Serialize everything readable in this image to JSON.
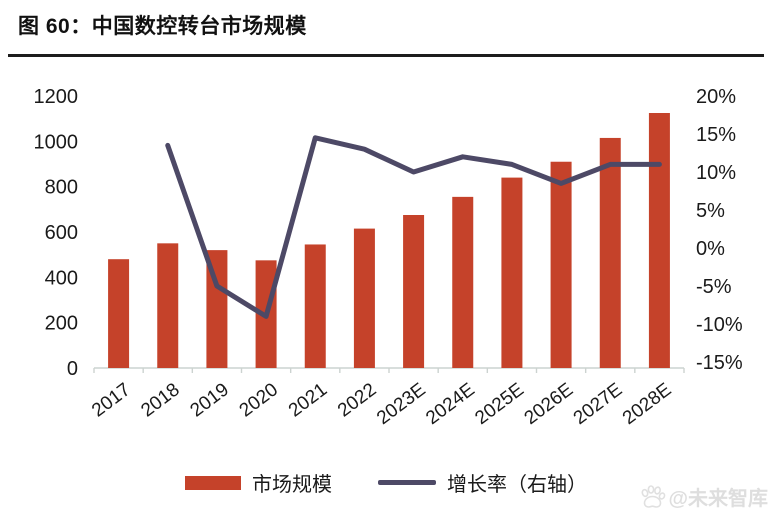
{
  "header": {
    "title": "图 60：中国数控转台市场规模"
  },
  "chart_data": {
    "type": "bar",
    "subtype": "combo-bar-line",
    "title": "中国数控转台市场规模",
    "categories": [
      "2017",
      "2018",
      "2019",
      "2020",
      "2021",
      "2022",
      "2023E",
      "2024E",
      "2025E",
      "2026E",
      "2027E",
      "2028E"
    ],
    "series": [
      {
        "name": "市场规模",
        "type": "bar",
        "axis": "left",
        "color": "#c5422a",
        "values": [
          480,
          550,
          520,
          475,
          545,
          615,
          675,
          755,
          840,
          910,
          1015,
          1125
        ]
      },
      {
        "name": "增长率（右轴）",
        "type": "line",
        "axis": "right",
        "color": "#4d4966",
        "values": [
          null,
          13.5,
          -5,
          -9,
          14.5,
          13,
          10,
          12,
          11,
          8.5,
          11,
          11
        ]
      }
    ],
    "axis_left": {
      "min": 0,
      "max": 1200,
      "tick_values": [
        0,
        200,
        400,
        600,
        800,
        1000,
        1200
      ],
      "suffix": ""
    },
    "axis_right": {
      "min": -15,
      "max": 20,
      "tick_values": [
        -15,
        -10,
        -5,
        0,
        5,
        10,
        15,
        20
      ],
      "suffix": "%"
    },
    "grid": "off",
    "legend_position": "bottom",
    "colors": {
      "baseline": "#ccd3d0",
      "tick_text": "#1a1a1a"
    }
  },
  "legend": {
    "items": [
      {
        "label": "市场规模",
        "swatch": "bar"
      },
      {
        "label": "增长率（右轴）",
        "swatch": "line"
      }
    ]
  },
  "watermark": {
    "icon": "paw-print-icon",
    "text": "@未来智库"
  }
}
